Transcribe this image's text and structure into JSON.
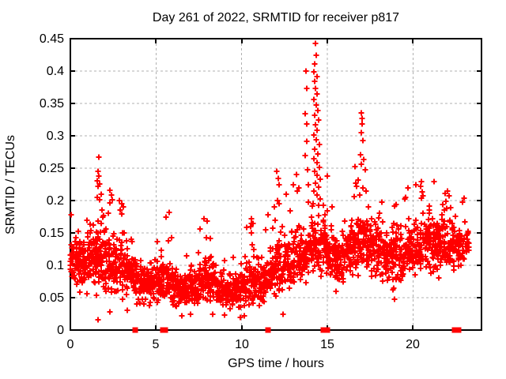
{
  "chart_data": {
    "type": "scatter",
    "title": "Day 261 of 2022, SRMTID for receiver p817",
    "xlabel": "GPS time / hours",
    "ylabel": "SRMTID / TECUs",
    "xlim": [
      0,
      24
    ],
    "ylim": [
      0,
      0.45
    ],
    "xticks": {
      "values": [
        0,
        5,
        10,
        15,
        20
      ],
      "labels": [
        "0",
        "5",
        "10",
        "15",
        "20"
      ]
    },
    "yticks": {
      "values": [
        0,
        0.05,
        0.1,
        0.15,
        0.2,
        0.25,
        0.3,
        0.35,
        0.4,
        0.45
      ],
      "labels": [
        "0",
        "0.05",
        "0.1",
        "0.15",
        "0.2",
        "0.25",
        "0.3",
        "0.35",
        "0.4",
        "0.45"
      ]
    },
    "grid": {
      "show": true,
      "style": "dashed",
      "color": "#b0b0b0"
    },
    "legend": "none",
    "background": "#ffffff",
    "frame_color": "#000000",
    "text_color": "#000000",
    "series": [
      {
        "name": "srmtid-points",
        "marker": "plus",
        "marker_size": 7,
        "color": "#ff0000",
        "cloud_bins": [
          [
            0,
            0.5,
            55,
            0.05,
            0.105,
            0.185
          ],
          [
            0.5,
            1,
            55,
            0.045,
            0.1,
            0.17
          ],
          [
            1,
            1.5,
            55,
            0.05,
            0.11,
            0.2
          ],
          [
            1.5,
            2,
            55,
            0.045,
            0.115,
            0.2
          ],
          [
            2,
            2.5,
            55,
            0.04,
            0.105,
            0.19
          ],
          [
            2.5,
            3,
            55,
            0.04,
            0.1,
            0.19
          ],
          [
            3,
            3.5,
            52,
            0.04,
            0.09,
            0.165
          ],
          [
            3.5,
            4,
            50,
            0.035,
            0.08,
            0.14
          ],
          [
            4,
            4.5,
            48,
            0.03,
            0.07,
            0.125
          ],
          [
            4.5,
            5,
            48,
            0.03,
            0.07,
            0.125
          ],
          [
            5,
            5.5,
            50,
            0.035,
            0.075,
            0.155
          ],
          [
            5.5,
            6,
            50,
            0.03,
            0.075,
            0.175
          ],
          [
            6,
            6.5,
            48,
            0.025,
            0.065,
            0.135
          ],
          [
            6.5,
            7,
            48,
            0.025,
            0.06,
            0.14
          ],
          [
            7,
            7.5,
            50,
            0.03,
            0.065,
            0.155
          ],
          [
            7.5,
            8,
            50,
            0.03,
            0.075,
            0.17
          ],
          [
            8,
            8.5,
            50,
            0.03,
            0.075,
            0.16
          ],
          [
            8.5,
            9,
            48,
            0.025,
            0.06,
            0.13
          ],
          [
            9,
            9.5,
            46,
            0.02,
            0.055,
            0.115
          ],
          [
            9.5,
            10,
            46,
            0.02,
            0.06,
            0.13
          ],
          [
            10,
            10.5,
            48,
            0.03,
            0.07,
            0.16
          ],
          [
            10.5,
            11,
            48,
            0.03,
            0.075,
            0.175
          ],
          [
            11,
            11.5,
            48,
            0.03,
            0.075,
            0.16
          ],
          [
            11.5,
            12,
            50,
            0.04,
            0.085,
            0.18
          ],
          [
            12,
            12.5,
            50,
            0.04,
            0.095,
            0.205
          ],
          [
            12.5,
            13,
            50,
            0.045,
            0.1,
            0.2
          ],
          [
            13,
            13.5,
            50,
            0.05,
            0.11,
            0.215
          ],
          [
            13.5,
            14,
            48,
            0.06,
            0.12,
            0.22
          ],
          [
            14,
            14.5,
            50,
            0.07,
            0.13,
            0.2
          ],
          [
            14.5,
            15,
            50,
            0.06,
            0.125,
            0.21
          ],
          [
            15,
            15.5,
            48,
            0.06,
            0.115,
            0.195
          ],
          [
            15.5,
            16,
            48,
            0.055,
            0.11,
            0.19
          ],
          [
            16,
            16.5,
            48,
            0.06,
            0.12,
            0.205
          ],
          [
            16.5,
            17,
            50,
            0.07,
            0.13,
            0.23
          ],
          [
            17,
            17.5,
            50,
            0.07,
            0.135,
            0.225
          ],
          [
            17.5,
            18,
            50,
            0.065,
            0.125,
            0.21
          ],
          [
            18,
            18.5,
            50,
            0.06,
            0.115,
            0.205
          ],
          [
            18.5,
            19,
            48,
            0.05,
            0.11,
            0.195
          ],
          [
            19,
            19.5,
            48,
            0.06,
            0.115,
            0.205
          ],
          [
            19.5,
            20,
            50,
            0.07,
            0.125,
            0.215
          ],
          [
            20,
            20.5,
            52,
            0.07,
            0.13,
            0.225
          ],
          [
            20.5,
            21,
            52,
            0.07,
            0.135,
            0.23
          ],
          [
            21,
            21.5,
            50,
            0.07,
            0.13,
            0.225
          ],
          [
            21.5,
            22,
            50,
            0.07,
            0.135,
            0.23
          ],
          [
            22,
            22.5,
            48,
            0.07,
            0.13,
            0.215
          ],
          [
            22.5,
            23,
            40,
            0.075,
            0.125,
            0.205
          ],
          [
            23,
            23.25,
            15,
            0.09,
            0.135,
            0.2
          ]
        ],
        "outlier_points": [
          [
            1.67,
            0.267
          ],
          [
            1.6,
            0.245
          ],
          [
            1.64,
            0.238
          ],
          [
            1.58,
            0.231
          ],
          [
            1.72,
            0.226
          ],
          [
            1.63,
            0.222
          ],
          [
            1.78,
            0.21
          ],
          [
            1.56,
            0.205
          ],
          [
            1.7,
            0.201
          ],
          [
            2.3,
            0.216
          ],
          [
            2.38,
            0.209
          ],
          [
            2.45,
            0.201
          ],
          [
            2.33,
            0.196
          ],
          [
            2.85,
            0.2
          ],
          [
            3.0,
            0.195
          ],
          [
            3.1,
            0.19
          ],
          [
            1.85,
            0.185
          ],
          [
            1.95,
            0.177
          ],
          [
            5.6,
            0.174
          ],
          [
            5.75,
            0.182
          ],
          [
            7.8,
            0.172
          ],
          [
            8.0,
            0.168
          ],
          [
            10.55,
            0.172
          ],
          [
            10.65,
            0.165
          ],
          [
            11.55,
            0.178
          ],
          [
            12.05,
            0.245
          ],
          [
            12.12,
            0.234
          ],
          [
            12.2,
            0.224
          ],
          [
            11.9,
            0.19
          ],
          [
            12.6,
            0.21
          ],
          [
            13.0,
            0.225
          ],
          [
            13.2,
            0.24
          ],
          [
            13.35,
            0.22
          ],
          [
            13.75,
            0.4
          ],
          [
            13.8,
            0.373
          ],
          [
            13.72,
            0.334
          ],
          [
            13.82,
            0.318
          ],
          [
            13.78,
            0.292
          ],
          [
            13.7,
            0.27
          ],
          [
            13.85,
            0.248
          ],
          [
            13.9,
            0.225
          ],
          [
            14.3,
            0.443
          ],
          [
            14.35,
            0.425
          ],
          [
            14.28,
            0.411
          ],
          [
            14.22,
            0.399
          ],
          [
            14.38,
            0.392
          ],
          [
            14.25,
            0.384
          ],
          [
            14.32,
            0.373
          ],
          [
            14.4,
            0.365
          ],
          [
            14.2,
            0.356
          ],
          [
            14.35,
            0.347
          ],
          [
            14.45,
            0.339
          ],
          [
            14.25,
            0.332
          ],
          [
            14.5,
            0.324
          ],
          [
            14.3,
            0.317
          ],
          [
            14.42,
            0.309
          ],
          [
            14.2,
            0.301
          ],
          [
            14.35,
            0.294
          ],
          [
            14.55,
            0.287
          ],
          [
            14.28,
            0.279
          ],
          [
            14.45,
            0.272
          ],
          [
            14.2,
            0.265
          ],
          [
            14.38,
            0.258
          ],
          [
            14.52,
            0.251
          ],
          [
            14.25,
            0.245
          ],
          [
            14.42,
            0.239
          ],
          [
            14.6,
            0.233
          ],
          [
            14.3,
            0.227
          ],
          [
            14.48,
            0.221
          ],
          [
            14.22,
            0.215
          ],
          [
            14.4,
            0.209
          ],
          [
            14.58,
            0.203
          ],
          [
            15.0,
            0.238
          ],
          [
            16.6,
            0.252
          ],
          [
            17.0,
            0.256
          ],
          [
            16.98,
            0.335
          ],
          [
            17.02,
            0.327
          ],
          [
            17.05,
            0.318
          ],
          [
            17.0,
            0.305
          ],
          [
            17.06,
            0.293
          ],
          [
            16.95,
            0.271
          ],
          [
            17.1,
            0.264
          ],
          [
            17.2,
            0.248
          ],
          [
            16.8,
            0.232
          ],
          [
            16.7,
            0.222
          ],
          [
            17.28,
            0.215
          ],
          [
            16.9,
            0.208
          ],
          [
            19.7,
            0.219
          ],
          [
            20.5,
            0.229
          ],
          [
            20.45,
            0.222
          ],
          [
            20.55,
            0.214
          ],
          [
            20.6,
            0.207
          ],
          [
            21.25,
            0.229
          ],
          [
            22.0,
            0.215
          ],
          [
            22.1,
            0.207
          ],
          [
            21.9,
            0.199
          ],
          [
            19.5,
            0.202
          ],
          [
            1.6,
            0.016
          ],
          [
            2.3,
            0.028
          ],
          [
            3.3,
            0.03
          ],
          [
            6.5,
            0.022
          ],
          [
            7.0,
            0.025
          ],
          [
            8.3,
            0.025
          ],
          [
            9.9,
            0.02
          ],
          [
            10.15,
            0.022
          ],
          [
            12.4,
            0.025
          ],
          [
            18.9,
            0.047
          ]
        ]
      },
      {
        "name": "axis-flags",
        "marker": "filled-square",
        "marker_size": 7,
        "color": "#ff0000",
        "y": 0,
        "x_values": [
          3.78,
          5.42,
          5.56,
          11.52,
          14.78,
          15.0,
          22.43,
          22.68
        ]
      }
    ]
  }
}
